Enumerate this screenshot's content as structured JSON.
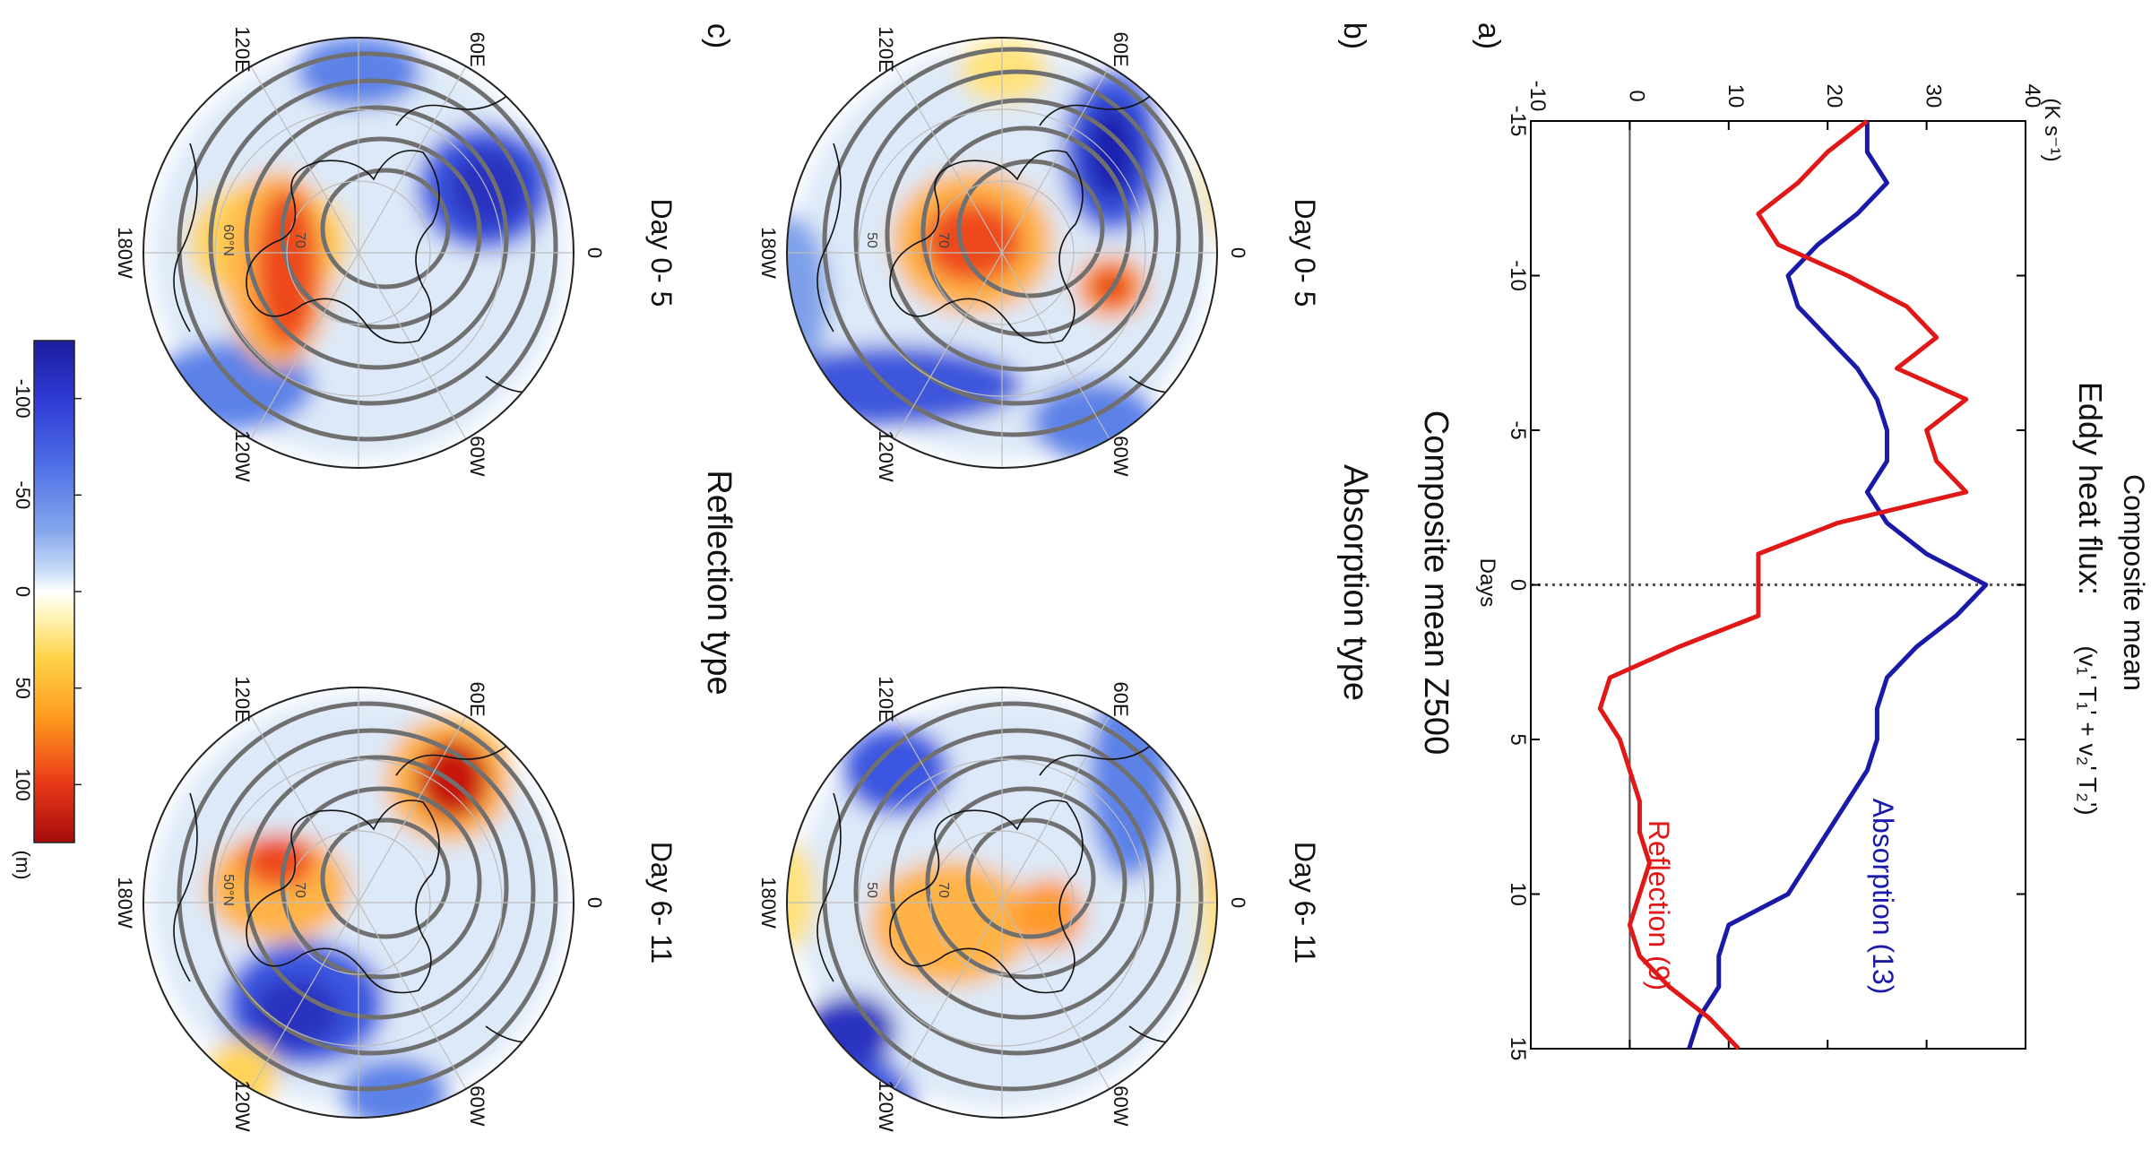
{
  "panels": {
    "a": {
      "letter": "a)",
      "title_line1": "Composite mean",
      "title_line2": "Eddy heat flux:",
      "formula": "(v₁' T₁' + v₂' T₂')",
      "unit": "(K s⁻¹)",
      "xlabel": "Days"
    },
    "b": {
      "letter": "b)",
      "type_label": "Absorption type",
      "left_label": "Day 0- 5",
      "right_label": "Day 6- 11"
    },
    "c": {
      "letter": "c)",
      "type_label": "Reflection type",
      "left_label": "Day 0- 5",
      "right_label": "Day 6- 11"
    },
    "z500_title": "Composite mean Z500"
  },
  "map_labels": {
    "lon": [
      "0",
      "60W",
      "120W",
      "180W",
      "120E",
      "60E"
    ],
    "lat_b_left": [
      "70",
      "50"
    ],
    "lat_b_right": [
      "70",
      "50"
    ],
    "lat_c_left": [
      "70",
      "60°N"
    ],
    "lat_c_right": [
      "70",
      "50°N"
    ]
  },
  "colorbar": {
    "ticks": [
      "-100",
      "-50",
      "0",
      "50",
      "100"
    ],
    "tick_values": [
      -100,
      -50,
      0,
      50,
      100
    ],
    "range": [
      -130,
      130
    ],
    "unit": "(m)",
    "colors": [
      "#1c1c9e",
      "#2f3bd6",
      "#4f6fe6",
      "#86a8ec",
      "#c9dcf6",
      "#ffffff",
      "#fff4b8",
      "#ffd44a",
      "#ff9b1e",
      "#ea3a18",
      "#a50b0b"
    ]
  },
  "chart_data": {
    "type": "line",
    "xlabel": "Days",
    "ylabel": "(K s⁻¹)",
    "xlim": [
      -15,
      15
    ],
    "ylim": [
      -10,
      40
    ],
    "xticks": [
      -15,
      -10,
      -5,
      0,
      5,
      10,
      15
    ],
    "yticks": [
      -10,
      0,
      10,
      20,
      30,
      40
    ],
    "reference_lines": {
      "horizontal_y": 0,
      "vertical_x_dotted": 0
    },
    "series": [
      {
        "name": "Absorption (13)",
        "color": "#1a1aa8",
        "x": [
          -15,
          -14,
          -13,
          -12,
          -11,
          -10,
          -9,
          -8,
          -7,
          -6,
          -5,
          -4,
          -3,
          -2,
          -1,
          0,
          1,
          2,
          3,
          4,
          5,
          6,
          7,
          8,
          9,
          10,
          11,
          12,
          13,
          14,
          15
        ],
        "y": [
          24,
          24,
          26,
          23,
          19,
          16,
          17,
          20,
          23,
          25,
          26,
          26,
          24,
          26,
          30,
          36,
          33,
          29,
          26,
          25,
          25,
          24,
          22,
          20,
          18,
          16,
          10,
          9,
          9,
          7,
          6
        ]
      },
      {
        "name": "Reflection (9)",
        "color": "#e01818",
        "x": [
          -15,
          -14,
          -13,
          -12,
          -11,
          -10,
          -9,
          -8,
          -7,
          -6,
          -5,
          -4,
          -3,
          -2,
          -1,
          0,
          1,
          2,
          3,
          4,
          5,
          6,
          7,
          8,
          9,
          10,
          11,
          12,
          13,
          14,
          15
        ],
        "y": [
          24,
          20,
          17,
          13,
          15,
          22,
          28,
          31,
          27,
          34,
          30,
          31,
          34,
          21,
          13,
          13,
          13,
          5,
          -2,
          -3,
          -1,
          0,
          1,
          1,
          2,
          1,
          0,
          1,
          4,
          8,
          11
        ]
      }
    ]
  }
}
